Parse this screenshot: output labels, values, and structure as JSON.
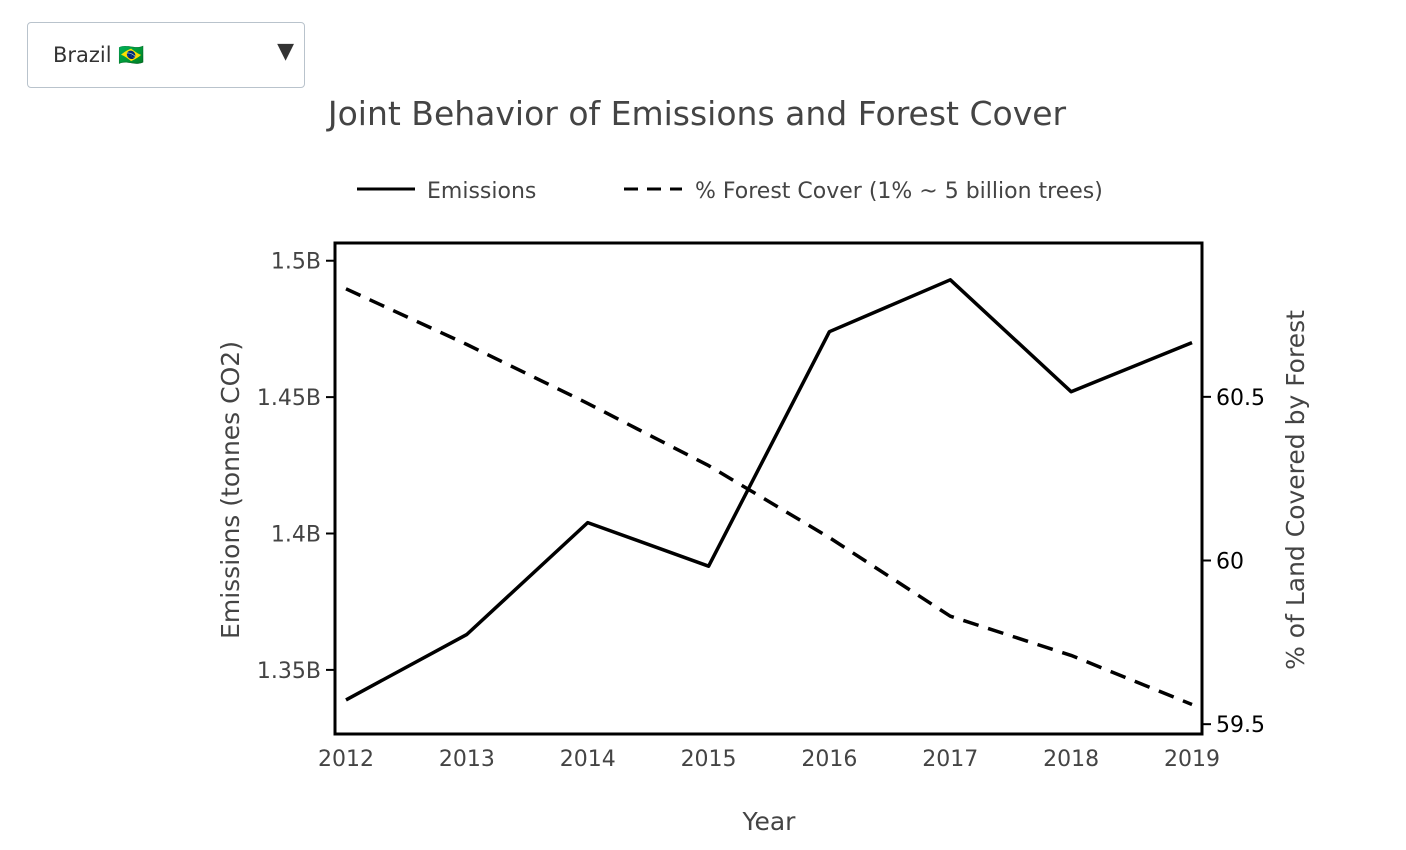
{
  "selector": {
    "selected": "Brazil 🇧🇷",
    "arrow_glyph": "▼",
    "arrow_icon": "triangle-down-icon"
  },
  "chart_data": {
    "type": "line",
    "title": "Joint Behavior of Emissions and Forest Cover",
    "xlabel": "Year",
    "ylabel": "Emissions (tonnes CO2)",
    "y2label": "% of Land Covered by Forest",
    "x": [
      2012,
      2013,
      2014,
      2015,
      2016,
      2017,
      2018,
      2019
    ],
    "xticks": [
      "2012",
      "2013",
      "2014",
      "2015",
      "2016",
      "2017",
      "2018",
      "2019"
    ],
    "xlim": [
      2012,
      2019
    ],
    "ylim": [
      1.3265,
      1.5065
    ],
    "ylim2": [
      59.47,
      60.97
    ],
    "yticks": [
      {
        "value": 1.35,
        "label": "1.35B"
      },
      {
        "value": 1.4,
        "label": "1.4B"
      },
      {
        "value": 1.45,
        "label": "1.45B"
      },
      {
        "value": 1.5,
        "label": "1.5B"
      }
    ],
    "y2ticks": [
      {
        "value": 59.5,
        "label": "59.5"
      },
      {
        "value": 60,
        "label": "60"
      },
      {
        "value": 60.5,
        "label": "60.5"
      }
    ],
    "legend_position": "top",
    "grid": false,
    "line_color": "#000000",
    "series": [
      {
        "name": "Emissions",
        "axis": "y",
        "dash": "solid",
        "values": [
          1.339,
          1.363,
          1.404,
          1.388,
          1.474,
          1.493,
          1.452,
          1.47
        ]
      },
      {
        "name": "% Forest Cover (1% ~ 5 billion trees)",
        "axis": "y2",
        "dash": "dashed",
        "values": [
          60.83,
          60.66,
          60.48,
          60.29,
          60.07,
          59.83,
          59.71,
          59.56
        ]
      }
    ]
  }
}
